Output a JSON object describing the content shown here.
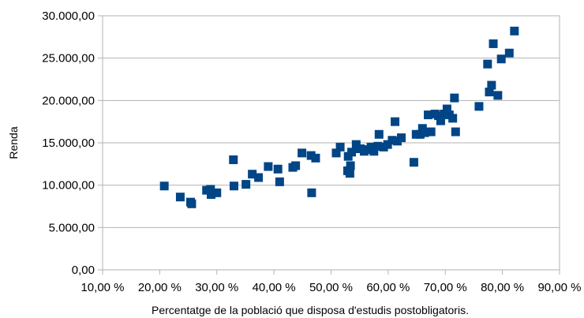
{
  "chart_data": {
    "type": "scatter",
    "title": "",
    "xlabel": "Percentatge de la població que disposa d'estudis postobligatoris.",
    "ylabel": "Renda",
    "xlim": [
      10,
      90
    ],
    "ylim": [
      0,
      30000
    ],
    "x_ticks": [
      10,
      20,
      30,
      40,
      50,
      60,
      70,
      80,
      90
    ],
    "x_tick_labels": [
      "10,00 %",
      "20,00 %",
      "30,00 %",
      "40,00 %",
      "50,00 %",
      "60,00 %",
      "70,00 %",
      "80,00 %",
      "90,00 %"
    ],
    "y_ticks": [
      0,
      5000,
      10000,
      15000,
      20000,
      25000,
      30000
    ],
    "y_tick_labels": [
      "0,00",
      "5.000,00",
      "10.000,00",
      "15.000,00",
      "20.000,00",
      "25.000,00",
      "30.000,00"
    ],
    "grid": "horizontal",
    "legend": "none",
    "marker": "square",
    "colors": {
      "marker": "#004586",
      "grid": "#b3b3b3",
      "text": "#000000"
    },
    "points": [
      [
        20.8,
        9900
      ],
      [
        23.6,
        8600
      ],
      [
        25.4,
        8000
      ],
      [
        25.6,
        7800
      ],
      [
        28.2,
        9400
      ],
      [
        28.9,
        9500
      ],
      [
        29.0,
        8900
      ],
      [
        30.0,
        9100
      ],
      [
        32.9,
        13000
      ],
      [
        33.0,
        9900
      ],
      [
        35.1,
        10100
      ],
      [
        36.2,
        11300
      ],
      [
        37.3,
        10900
      ],
      [
        39.0,
        12200
      ],
      [
        40.7,
        11900
      ],
      [
        41.0,
        10400
      ],
      [
        43.3,
        12100
      ],
      [
        43.8,
        12300
      ],
      [
        44.9,
        13800
      ],
      [
        46.5,
        13500
      ],
      [
        46.6,
        9100
      ],
      [
        47.3,
        13200
      ],
      [
        50.9,
        13800
      ],
      [
        51.6,
        14500
      ],
      [
        52.9,
        11700
      ],
      [
        53.0,
        13400
      ],
      [
        53.3,
        11400
      ],
      [
        53.4,
        12300
      ],
      [
        53.6,
        13900
      ],
      [
        54.4,
        14800
      ],
      [
        55.1,
        14300
      ],
      [
        55.8,
        14000
      ],
      [
        56.4,
        14200
      ],
      [
        57.0,
        14500
      ],
      [
        57.5,
        14000
      ],
      [
        58.2,
        14600
      ],
      [
        58.4,
        16000
      ],
      [
        59.2,
        14500
      ],
      [
        59.9,
        14800
      ],
      [
        60.7,
        15300
      ],
      [
        61.2,
        17500
      ],
      [
        61.6,
        15200
      ],
      [
        62.3,
        15600
      ],
      [
        64.5,
        12700
      ],
      [
        64.9,
        16000
      ],
      [
        65.6,
        16000
      ],
      [
        66.0,
        16700
      ],
      [
        66.4,
        16200
      ],
      [
        67.0,
        18300
      ],
      [
        67.5,
        16300
      ],
      [
        68.2,
        18400
      ],
      [
        68.8,
        18200
      ],
      [
        69.2,
        17600
      ],
      [
        69.8,
        18400
      ],
      [
        70.3,
        19000
      ],
      [
        70.7,
        18300
      ],
      [
        71.3,
        17900
      ],
      [
        71.6,
        20300
      ],
      [
        71.8,
        16300
      ],
      [
        75.9,
        19300
      ],
      [
        77.4,
        24300
      ],
      [
        77.7,
        21000
      ],
      [
        78.1,
        21800
      ],
      [
        78.4,
        26700
      ],
      [
        79.2,
        20600
      ],
      [
        79.8,
        24900
      ],
      [
        81.2,
        25600
      ],
      [
        82.1,
        28200
      ]
    ]
  }
}
